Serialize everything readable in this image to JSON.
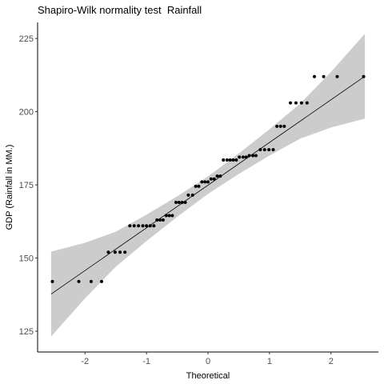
{
  "chart_data": {
    "type": "qq",
    "title": "Shapiro-Wilk normality test  Rainfall",
    "x_label": "Theoretical",
    "y_label": "GDP (Rainfall in MM.)",
    "x": [
      -2.53,
      -2.1,
      -1.9,
      -1.73,
      -1.62,
      -1.51,
      -1.43,
      -1.35,
      -1.27,
      -1.2,
      -1.13,
      -1.06,
      -1.0,
      -0.94,
      -0.88,
      -0.83,
      -0.78,
      -0.73,
      -0.68,
      -0.63,
      -0.58,
      -0.52,
      -0.47,
      -0.42,
      -0.37,
      -0.32,
      -0.25,
      -0.2,
      -0.15,
      -0.1,
      -0.05,
      0.0,
      0.05,
      0.1,
      0.15,
      0.2,
      0.25,
      0.31,
      0.36,
      0.41,
      0.46,
      0.51,
      0.57,
      0.62,
      0.67,
      0.73,
      0.78,
      0.85,
      0.92,
      0.99,
      1.06,
      1.12,
      1.18,
      1.24,
      1.34,
      1.43,
      1.52,
      1.61,
      1.73,
      1.88,
      2.1,
      2.53
    ],
    "values": [
      142,
      142,
      142,
      142,
      152,
      152,
      152,
      152,
      161,
      161,
      161,
      161,
      161,
      161,
      161,
      163,
      163,
      163,
      164.5,
      164.5,
      164.5,
      169,
      169,
      169,
      169,
      171.5,
      171.5,
      174.5,
      174.5,
      176,
      176,
      176,
      177,
      177,
      178,
      178,
      183.5,
      183.5,
      183.5,
      183.5,
      183.5,
      184.5,
      184.5,
      184.5,
      185,
      185,
      185,
      187,
      187,
      187,
      187,
      195,
      195,
      195,
      203,
      203,
      203,
      203,
      212,
      212,
      212,
      212
    ],
    "color": "#000000",
    "line": {
      "x": [
        -2.55,
        2.55
      ],
      "y": [
        137.7,
        212.1
      ],
      "color": "#000000"
    },
    "band": {
      "x": [
        -2.55,
        -2,
        -1.5,
        -1,
        -0.5,
        0,
        0.5,
        1,
        1.5,
        2,
        2.55
      ],
      "lower": [
        123.2,
        136.2,
        147.0,
        155.8,
        164.1,
        171.9,
        178.7,
        185.0,
        190.8,
        194.6,
        197.6
      ],
      "upper": [
        152.2,
        155.2,
        159.0,
        164.8,
        171.1,
        177.9,
        185.7,
        194.0,
        202.8,
        213.6,
        226.6
      ],
      "color": "#cccccc"
    },
    "xlim": [
      -2.77,
      2.77
    ],
    "ylim": [
      117.9,
      230.5
    ],
    "xticks": [
      -2,
      -1,
      0,
      1,
      2
    ],
    "yticks": [
      125,
      150,
      175,
      200,
      225
    ]
  }
}
